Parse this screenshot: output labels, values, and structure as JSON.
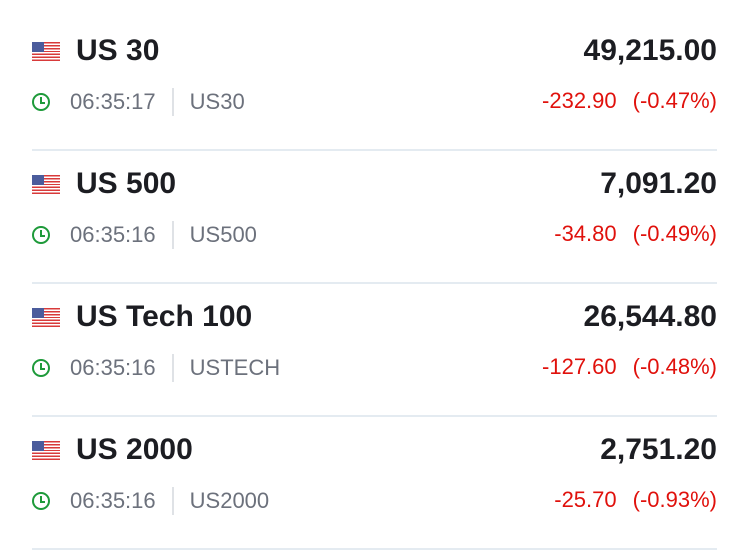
{
  "items": [
    {
      "name": "US 30",
      "price": "49,215.00",
      "time": "06:35:17",
      "symbol": "US30",
      "change": "-232.90",
      "percent": "(-0.47%)"
    },
    {
      "name": "US 500",
      "price": "7,091.20",
      "time": "06:35:16",
      "symbol": "US500",
      "change": "-34.80",
      "percent": "(-0.49%)"
    },
    {
      "name": "US Tech 100",
      "price": "26,544.80",
      "time": "06:35:16",
      "symbol": "USTECH",
      "change": "-127.60",
      "percent": "(-0.48%)"
    },
    {
      "name": "US 2000",
      "price": "2,751.20",
      "time": "06:35:16",
      "symbol": "US2000",
      "change": "-25.70",
      "percent": "(-0.93%)"
    }
  ],
  "colors": {
    "negative": "#e0110c",
    "clock": "#1e9a3a",
    "text": "#1c1d22"
  },
  "icons": {
    "flag": "us-flag-icon",
    "clock": "clock-icon"
  }
}
